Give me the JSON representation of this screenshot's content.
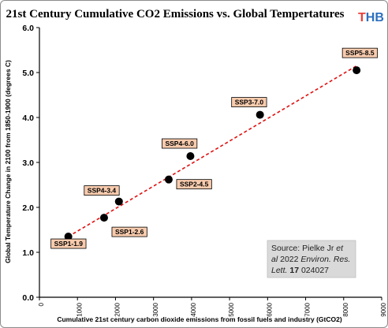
{
  "chart_data": {
    "type": "scatter",
    "title": "21st Century Cumulative CO2 Emissions vs. Global  Tempertatures",
    "xlabel": "Cumulative 21st century carbon dioxide emissions from fossil fuels and industry (GtCO2)",
    "ylabel": "Global Temperature Change in 2100 from 1850-1900 (degrees C)",
    "xlim": [
      0,
      9000
    ],
    "ylim": [
      0.0,
      6.0
    ],
    "xticks": [
      "0",
      "1000",
      "2000",
      "3000",
      "4000",
      "5000",
      "6000",
      "7000",
      "8000",
      "9000"
    ],
    "yticks": [
      "0.0",
      "1.0",
      "2.0",
      "3.0",
      "4.0",
      "5.0",
      "6.0"
    ],
    "grid": false,
    "points": [
      {
        "label": "SSP1-1.9",
        "x": 760,
        "y": 1.35
      },
      {
        "label": "SSP1-2.6",
        "x": 1700,
        "y": 1.77
      },
      {
        "label": "SSP4-3.4",
        "x": 2090,
        "y": 2.13
      },
      {
        "label": "SSP2-4.5",
        "x": 3400,
        "y": 2.62
      },
      {
        "label": "SSP4-6.0",
        "x": 3970,
        "y": 3.14
      },
      {
        "label": "SSP3-7.0",
        "x": 5800,
        "y": 4.06
      },
      {
        "label": "SSP5-8.5",
        "x": 8340,
        "y": 5.05
      }
    ],
    "trendline": {
      "style": "dashed",
      "color": "#e01010",
      "x": [
        760,
        8340
      ],
      "y": [
        1.35,
        5.15
      ]
    },
    "marker_color": "#000000",
    "label_box_color": "#f8cbad",
    "annotation": {
      "line1": "Source: Pielke Jr ",
      "line1_italic": "et",
      "line2_italic_a": "al",
      "line2_plain": " 2022 ",
      "line2_italic_b": "Environ. Res.",
      "line3_italic": "Lett.",
      "line3_bold": " 17",
      "line3_plain": " 024027"
    }
  },
  "logo": {
    "text_t": "T",
    "text_hb": "HB",
    "color_t": "#e8413b",
    "color_hb": "#2c6fbf"
  }
}
